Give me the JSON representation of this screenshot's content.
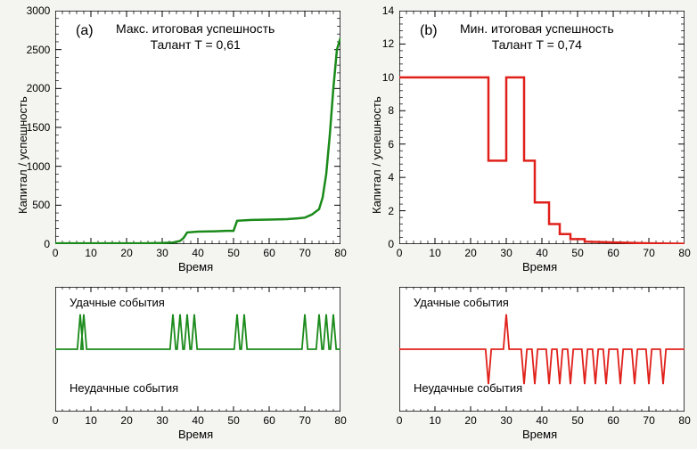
{
  "background_color": "#f4f4f0",
  "plot_bg": "#ffffff",
  "axis_color": "#000000",
  "tick_color": "#000000",
  "tick_fontsize": 12,
  "label_fontsize": 13,
  "title_fontsize": 14,
  "panel_label_fontsize": 16,
  "line_width_main": 2.5,
  "line_width_events": 1.8,
  "left": {
    "color": "#1a8a1a",
    "panel_label": "(a)",
    "title_line1": "Макс. итоговая успешность",
    "title_line2": "Талант T = 0,61",
    "ylabel": "Капитал / успешность",
    "xlabel": "Время",
    "xlim": [
      0,
      80
    ],
    "ylim": [
      0,
      3000
    ],
    "xticks": [
      0,
      10,
      20,
      30,
      40,
      50,
      60,
      70,
      80
    ],
    "yticks": [
      0,
      500,
      1000,
      1500,
      2000,
      2500,
      3000
    ],
    "series": [
      [
        0,
        10
      ],
      [
        5,
        10
      ],
      [
        10,
        10
      ],
      [
        15,
        10
      ],
      [
        20,
        10
      ],
      [
        25,
        10
      ],
      [
        30,
        15
      ],
      [
        33,
        20
      ],
      [
        35,
        40
      ],
      [
        36,
        80
      ],
      [
        37,
        150
      ],
      [
        40,
        160
      ],
      [
        45,
        165
      ],
      [
        48,
        170
      ],
      [
        50,
        170
      ],
      [
        51,
        300
      ],
      [
        55,
        310
      ],
      [
        60,
        315
      ],
      [
        65,
        320
      ],
      [
        68,
        330
      ],
      [
        70,
        340
      ],
      [
        72,
        380
      ],
      [
        74,
        450
      ],
      [
        75,
        600
      ],
      [
        76,
        900
      ],
      [
        77,
        1400
      ],
      [
        78,
        2000
      ],
      [
        79,
        2500
      ],
      [
        80,
        2650
      ]
    ],
    "events": {
      "xlabel": "Время",
      "lucky_label": "Удачные события",
      "unlucky_label": "Неудачные события",
      "xlim": [
        0,
        80
      ],
      "xticks": [
        0,
        10,
        20,
        30,
        40,
        50,
        60,
        70,
        80
      ],
      "baseline": 0,
      "amplitude": 1,
      "spikes": [
        [
          7,
          1
        ],
        [
          8,
          1
        ],
        [
          33,
          1
        ],
        [
          35,
          1
        ],
        [
          37,
          1
        ],
        [
          39,
          1
        ],
        [
          51,
          1
        ],
        [
          53,
          1
        ],
        [
          70,
          1
        ],
        [
          74,
          1
        ],
        [
          76,
          1
        ],
        [
          78,
          1
        ]
      ]
    }
  },
  "right": {
    "color": "#e0201a",
    "panel_label": "(b)",
    "title_line1": "Мин. итоговая успешность",
    "title_line2": "Талант T = 0,74",
    "ylabel": "Капитал / успешность",
    "xlabel": "Время",
    "xlim": [
      0,
      80
    ],
    "ylim": [
      0,
      14
    ],
    "xticks": [
      0,
      10,
      20,
      30,
      40,
      50,
      60,
      70,
      80
    ],
    "yticks": [
      0,
      2,
      4,
      6,
      8,
      10,
      12,
      14
    ],
    "series": [
      [
        0,
        10
      ],
      [
        5,
        10
      ],
      [
        10,
        10
      ],
      [
        15,
        10
      ],
      [
        20,
        10
      ],
      [
        24,
        10
      ],
      [
        25,
        10
      ],
      [
        25,
        5
      ],
      [
        28,
        5
      ],
      [
        30,
        5
      ],
      [
        30,
        10
      ],
      [
        33,
        10
      ],
      [
        35,
        10
      ],
      [
        35,
        5
      ],
      [
        37,
        5
      ],
      [
        38,
        5
      ],
      [
        38,
        2.5
      ],
      [
        42,
        2.5
      ],
      [
        42,
        1.2
      ],
      [
        45,
        1.2
      ],
      [
        45,
        0.6
      ],
      [
        48,
        0.6
      ],
      [
        48,
        0.3
      ],
      [
        52,
        0.3
      ],
      [
        52,
        0.15
      ],
      [
        60,
        0.1
      ],
      [
        70,
        0.05
      ],
      [
        80,
        0.02
      ]
    ],
    "events": {
      "xlabel": "Время",
      "lucky_label": "Удачные события",
      "unlucky_label": "Неудачные события",
      "xlim": [
        0,
        80
      ],
      "xticks": [
        0,
        10,
        20,
        30,
        40,
        50,
        60,
        70,
        80
      ],
      "baseline": 0,
      "amplitude": 1,
      "spikes": [
        [
          25,
          -1
        ],
        [
          30,
          1
        ],
        [
          35,
          -1
        ],
        [
          38,
          -1
        ],
        [
          42,
          -1
        ],
        [
          45,
          -1
        ],
        [
          48,
          -1
        ],
        [
          52,
          -1
        ],
        [
          55,
          -1
        ],
        [
          58,
          -1
        ],
        [
          62,
          -1
        ],
        [
          66,
          -1
        ],
        [
          70,
          -1
        ],
        [
          74,
          -1
        ]
      ]
    }
  }
}
